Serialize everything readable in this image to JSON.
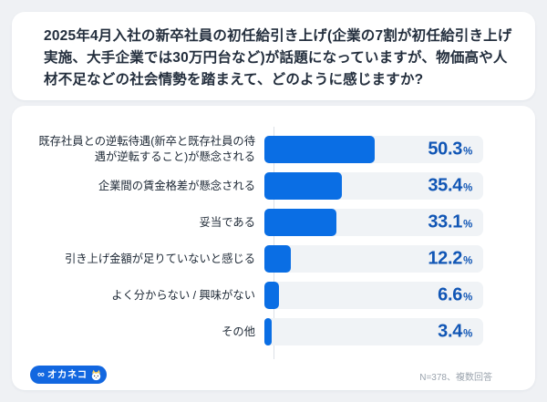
{
  "question_card": {
    "title": "2025年4月入社の新卒社員の初任給引き上げ(企業の7割が初任給引き上げ実施、大手企業では30万円台など)が話題になっていますが、物価高や人材不足などの社会情勢を踏まえて、どのように感じますか?"
  },
  "chart_data": {
    "type": "bar",
    "orientation": "horizontal",
    "categories": [
      "既存社員との逆転待遇(新卒と既存社員の待遇が逆転すること)が懸念される",
      "企業間の賃金格差が懸念される",
      "妥当である",
      "引き上げ金額が足りていないと感じる",
      "よく分からない / 興味がない",
      "その他"
    ],
    "values": [
      50.3,
      35.4,
      33.1,
      12.2,
      6.6,
      3.4
    ],
    "value_suffix": "%",
    "xlim": [
      0,
      100
    ],
    "grid": false,
    "legend": false,
    "bar_color": "#0a6ee4",
    "track_color": "#f0f3f6",
    "value_color": "#1156b5",
    "note": "N=378、複数回答"
  },
  "footer": {
    "logo_mark": "∞",
    "logo_name": "オカネコ",
    "logo_color": "#1267e0",
    "note": "N=378、複数回答"
  }
}
